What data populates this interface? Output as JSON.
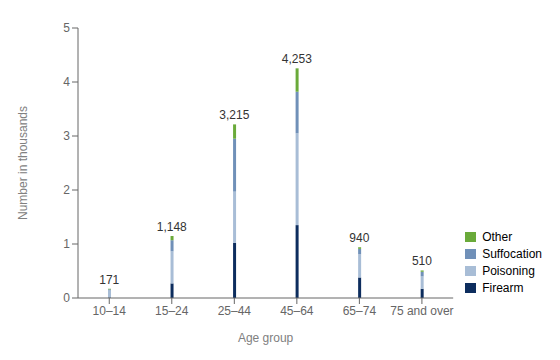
{
  "chart_data": {
    "type": "bar",
    "stacked": true,
    "categories": [
      "10–14",
      "15–24",
      "25–44",
      "45–64",
      "65–74",
      "75 and over"
    ],
    "series": [
      {
        "name": "Firearm",
        "color": "#0d2d5e",
        "values": [
          0.01,
          0.27,
          1.02,
          1.35,
          0.38,
          0.17
        ]
      },
      {
        "name": "Poisoning",
        "color": "#a8bdd6",
        "values": [
          0.13,
          0.595,
          0.95,
          1.7,
          0.43,
          0.23
        ]
      },
      {
        "name": "Suffocation",
        "color": "#7090b8",
        "values": [
          0.02,
          0.205,
          0.98,
          0.77,
          0.1,
          0.085
        ]
      },
      {
        "name": "Other",
        "color": "#6aaa3a",
        "values": [
          0.011,
          0.078,
          0.265,
          0.433,
          0.03,
          0.025
        ]
      }
    ],
    "annotations": [
      {
        "category": "10–14",
        "value": 0.171,
        "label": "171"
      },
      {
        "category": "15–24",
        "value": 1.148,
        "label": "1,148"
      },
      {
        "category": "25–44",
        "value": 3.215,
        "label": "3,215"
      },
      {
        "category": "45–64",
        "value": 4.253,
        "label": "4,253"
      },
      {
        "category": "65–74",
        "value": 0.94,
        "label": "940"
      },
      {
        "category": "75 and over",
        "value": 0.51,
        "label": "510"
      }
    ],
    "xlabel": "Age group",
    "ylabel": "Number in thousands",
    "ylim": [
      0,
      5
    ],
    "yticks": [
      0,
      1,
      2,
      3,
      4,
      5
    ],
    "grid": false,
    "legend": "lower right"
  }
}
